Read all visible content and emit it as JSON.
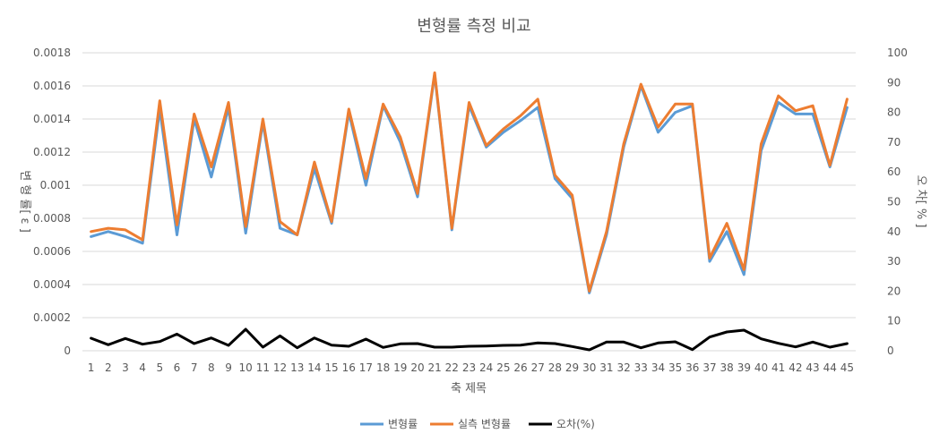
{
  "chart_data": {
    "type": "line",
    "title": "변형률 측정 비교",
    "xlabel": "축 제목",
    "ylabel_left": "변 형 률[ ε ]",
    "ylabel_right": "오 차[ % ]",
    "categories": [
      "1",
      "2",
      "3",
      "4",
      "5",
      "6",
      "7",
      "8",
      "9",
      "10",
      "11",
      "12",
      "13",
      "14",
      "15",
      "16",
      "17",
      "18",
      "19",
      "20",
      "21",
      "22",
      "23",
      "24",
      "25",
      "26",
      "27",
      "28",
      "29",
      "30",
      "31",
      "32",
      "33",
      "34",
      "35",
      "36",
      "37",
      "38",
      "39",
      "40",
      "41",
      "42",
      "43",
      "44",
      "45"
    ],
    "ylim_left": [
      0,
      0.0018
    ],
    "yticks_left": [
      "0",
      "0.0002",
      "0.0004",
      "0.0006",
      "0.0008",
      "0.001",
      "0.0012",
      "0.0014",
      "0.0016",
      "0.0018"
    ],
    "ylim_right": [
      0,
      100
    ],
    "yticks_right": [
      "0",
      "10",
      "20",
      "30",
      "40",
      "50",
      "60",
      "70",
      "80",
      "90",
      "100"
    ],
    "grid": true,
    "legend_position": "bottom",
    "series": [
      {
        "name": "변형률",
        "axis": "left",
        "color": "#5b9bd5",
        "values": [
          0.00069,
          0.00072,
          0.00069,
          0.00065,
          0.00146,
          0.0007,
          0.0014,
          0.00105,
          0.00147,
          0.00071,
          0.00138,
          0.00074,
          0.0007,
          0.0011,
          0.00077,
          0.00144,
          0.001,
          0.00148,
          0.00126,
          0.00093,
          0.00167,
          0.00073,
          0.00148,
          0.00123,
          0.00132,
          0.00139,
          0.00147,
          0.00104,
          0.00092,
          0.00035,
          0.0007,
          0.00123,
          0.0016,
          0.00132,
          0.00144,
          0.00148,
          0.00054,
          0.00072,
          0.00046,
          0.00121,
          0.0015,
          0.00143,
          0.00143,
          0.00111,
          0.00147
        ]
      },
      {
        "name": "실측 변형률",
        "axis": "left",
        "color": "#ed7d31",
        "values": [
          0.00072,
          0.00074,
          0.00073,
          0.00067,
          0.00151,
          0.00076,
          0.00143,
          0.00111,
          0.0015,
          0.00075,
          0.0014,
          0.00078,
          0.0007,
          0.00114,
          0.00078,
          0.00146,
          0.00104,
          0.00149,
          0.00129,
          0.00095,
          0.00168,
          0.00074,
          0.0015,
          0.00124,
          0.00134,
          0.00142,
          0.00152,
          0.00106,
          0.00094,
          0.00036,
          0.00072,
          0.00125,
          0.00161,
          0.00135,
          0.00149,
          0.00149,
          0.00056,
          0.00077,
          0.00049,
          0.00125,
          0.00154,
          0.00145,
          0.00148,
          0.00112,
          0.00152
        ]
      },
      {
        "name": "오차(%)",
        "axis": "right",
        "color": "#000000",
        "values": [
          4.2,
          2.0,
          4.1,
          2.2,
          3.1,
          5.6,
          2.4,
          4.3,
          1.8,
          7.2,
          1.2,
          5.0,
          1.0,
          4.3,
          1.9,
          1.5,
          3.9,
          1.1,
          2.3,
          2.4,
          1.2,
          1.2,
          1.5,
          1.6,
          1.8,
          1.9,
          2.6,
          2.4,
          1.4,
          0.3,
          2.9,
          2.9,
          1.0,
          2.6,
          3.0,
          0.4,
          4.6,
          6.3,
          6.9,
          4.0,
          2.5,
          1.3,
          2.9,
          1.2,
          2.4
        ]
      }
    ]
  }
}
